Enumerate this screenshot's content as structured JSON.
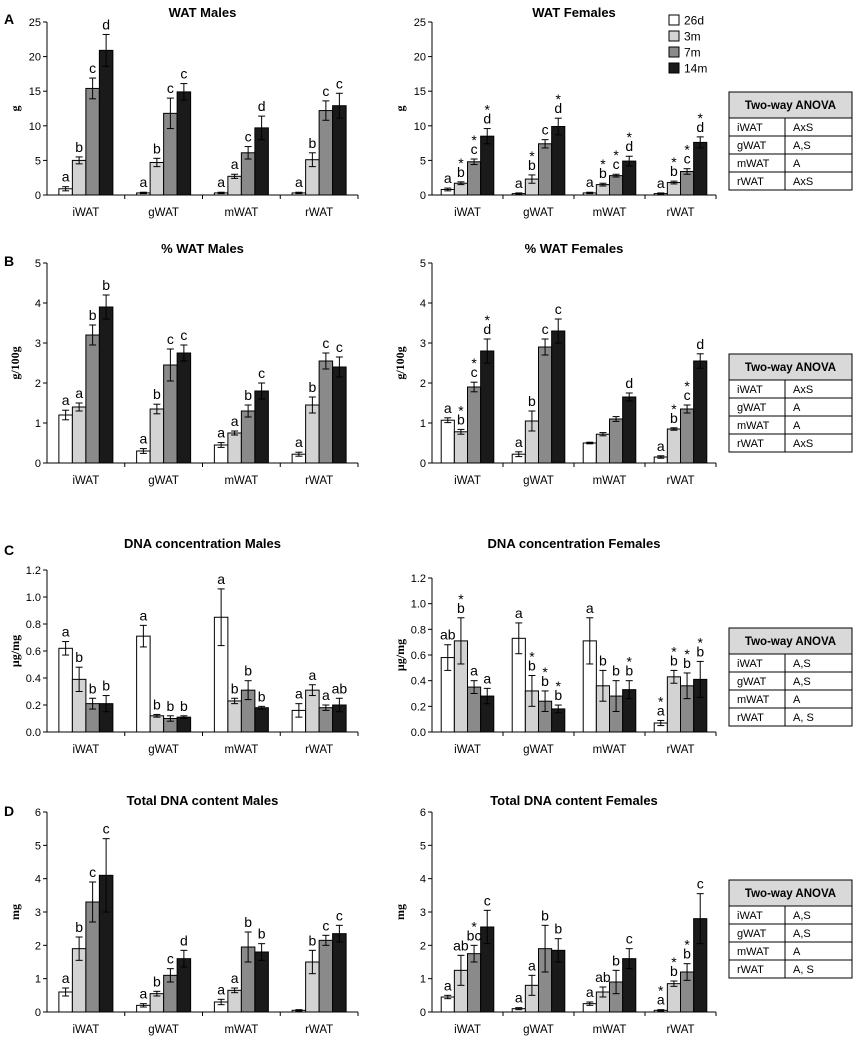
{
  "categories": [
    "iWAT",
    "gWAT",
    "mWAT",
    "rWAT"
  ],
  "legend": [
    {
      "name": "26d",
      "color": "#ffffff"
    },
    {
      "name": "3m",
      "color": "#d3d3d3"
    },
    {
      "name": "7m",
      "color": "#8a8a8a"
    },
    {
      "name": "14m",
      "color": "#1a1a1a"
    }
  ],
  "anova_tables": [
    {
      "header": "Two-way ANOVA",
      "rows": [
        [
          "iWAT",
          "AxS"
        ],
        [
          "gWAT",
          "A,S"
        ],
        [
          "mWAT",
          "A"
        ],
        [
          "rWAT",
          "AxS"
        ]
      ]
    },
    {
      "header": "Two-way ANOVA",
      "rows": [
        [
          "iWAT",
          "AxS"
        ],
        [
          "gWAT",
          "A"
        ],
        [
          "mWAT",
          "A"
        ],
        [
          "rWAT",
          "AxS"
        ]
      ]
    },
    {
      "header": "Two-way ANOVA",
      "rows": [
        [
          "iWAT",
          "A,S"
        ],
        [
          "gWAT",
          "A,S"
        ],
        [
          "mWAT",
          "A"
        ],
        [
          "rWAT",
          "A, S"
        ]
      ]
    },
    {
      "header": "Two-way ANOVA",
      "rows": [
        [
          "iWAT",
          "A,S"
        ],
        [
          "gWAT",
          "A,S"
        ],
        [
          "mWAT",
          "A"
        ],
        [
          "rWAT",
          "A, S"
        ]
      ]
    }
  ],
  "chart_data": [
    {
      "panel": "A",
      "type": "bar",
      "title": "WAT Males",
      "ylabel": "g",
      "ylim": [
        0,
        25
      ],
      "yticks": [
        "0",
        "5",
        "10",
        "15",
        "20",
        "25"
      ],
      "values": [
        [
          0.9,
          5.0,
          15.4,
          20.9
        ],
        [
          0.3,
          4.7,
          11.8,
          14.9
        ],
        [
          0.3,
          2.7,
          6.1,
          9.7
        ],
        [
          0.3,
          5.1,
          12.2,
          12.9
        ]
      ],
      "errors": [
        [
          0.3,
          0.5,
          1.5,
          2.3
        ],
        [
          0.1,
          0.6,
          2.2,
          1.2
        ],
        [
          0.1,
          0.3,
          0.9,
          1.7
        ],
        [
          0.1,
          1.0,
          1.4,
          1.8
        ]
      ],
      "letters": [
        [
          "a",
          "b",
          "c",
          "d"
        ],
        [
          "a",
          "b",
          "c",
          "c"
        ],
        [
          "a",
          "a",
          "c",
          "d"
        ],
        [
          "a",
          "b",
          "c",
          "c"
        ]
      ],
      "stars": [
        [
          false,
          false,
          false,
          false
        ],
        [
          false,
          false,
          false,
          false
        ],
        [
          false,
          false,
          false,
          false
        ],
        [
          false,
          false,
          false,
          false
        ]
      ]
    },
    {
      "panel": "",
      "type": "bar",
      "title": "WAT Females",
      "ylabel": "g",
      "ylim": [
        0,
        25
      ],
      "yticks": [
        "0",
        "5",
        "10",
        "15",
        "20",
        "25"
      ],
      "values": [
        [
          0.8,
          1.7,
          4.8,
          8.5
        ],
        [
          0.2,
          2.3,
          7.4,
          9.9
        ],
        [
          0.3,
          1.5,
          2.8,
          4.9
        ],
        [
          0.2,
          1.8,
          3.4,
          7.6
        ]
      ],
      "errors": [
        [
          0.2,
          0.2,
          0.4,
          1.1
        ],
        [
          0.1,
          0.6,
          0.6,
          1.2
        ],
        [
          0.1,
          0.2,
          0.2,
          0.7
        ],
        [
          0.1,
          0.2,
          0.4,
          0.8
        ]
      ],
      "letters": [
        [
          "a",
          "b",
          "c",
          "d"
        ],
        [
          "a",
          "b",
          "c",
          "d"
        ],
        [
          "a",
          "b",
          "c",
          "d"
        ],
        [
          "a",
          "b",
          "c",
          "d"
        ]
      ],
      "stars": [
        [
          false,
          true,
          true,
          true
        ],
        [
          false,
          true,
          false,
          true
        ],
        [
          false,
          true,
          true,
          true
        ],
        [
          false,
          true,
          true,
          true
        ]
      ]
    },
    {
      "panel": "B",
      "type": "bar",
      "title": "% WAT Males",
      "ylabel": "g/100g",
      "ylim": [
        0,
        5
      ],
      "yticks": [
        "0",
        "1",
        "2",
        "3",
        "4",
        "5"
      ],
      "values": [
        [
          1.2,
          1.4,
          3.2,
          3.9
        ],
        [
          0.3,
          1.35,
          2.45,
          2.75
        ],
        [
          0.45,
          0.75,
          1.3,
          1.8
        ],
        [
          0.22,
          1.45,
          2.55,
          2.4
        ]
      ],
      "errors": [
        [
          0.12,
          0.1,
          0.25,
          0.3
        ],
        [
          0.06,
          0.12,
          0.4,
          0.2
        ],
        [
          0.06,
          0.05,
          0.15,
          0.2
        ],
        [
          0.05,
          0.2,
          0.2,
          0.25
        ]
      ],
      "letters": [
        [
          "a",
          "a",
          "b",
          "b"
        ],
        [
          "a",
          "b",
          "c",
          "c"
        ],
        [
          "a",
          "a",
          "b",
          "c"
        ],
        [
          "a",
          "b",
          "c",
          "c"
        ]
      ],
      "stars": [
        [
          false,
          false,
          false,
          false
        ],
        [
          false,
          false,
          false,
          false
        ],
        [
          false,
          false,
          false,
          false
        ],
        [
          false,
          false,
          false,
          false
        ]
      ]
    },
    {
      "panel": "",
      "type": "bar",
      "title": "% WAT Females",
      "ylabel": "g/100g",
      "ylim": [
        0,
        5
      ],
      "yticks": [
        "0",
        "1",
        "2",
        "3",
        "4",
        "5"
      ],
      "values": [
        [
          1.07,
          0.78,
          1.9,
          2.8
        ],
        [
          0.22,
          1.05,
          2.9,
          3.3
        ],
        [
          0.5,
          0.72,
          1.1,
          1.65
        ],
        [
          0.15,
          0.85,
          1.35,
          2.55
        ]
      ],
      "errors": [
        [
          0.06,
          0.06,
          0.12,
          0.3
        ],
        [
          0.06,
          0.25,
          0.2,
          0.3
        ],
        [
          0.02,
          0.04,
          0.06,
          0.1
        ],
        [
          0.03,
          0.03,
          0.1,
          0.18
        ]
      ],
      "letters": [
        [
          "a",
          "b",
          "c",
          "d"
        ],
        [
          "a",
          "b",
          "c",
          "c"
        ],
        [
          "",
          "",
          "",
          "d"
        ],
        [
          "a",
          "b",
          "c",
          "d"
        ]
      ],
      "stars": [
        [
          false,
          true,
          true,
          true
        ],
        [
          false,
          false,
          false,
          false
        ],
        [
          false,
          false,
          false,
          false
        ],
        [
          false,
          true,
          true,
          false
        ]
      ]
    },
    {
      "panel": "C",
      "type": "bar",
      "title": "DNA concentration Males",
      "ylabel": "μg/mg",
      "ylim": [
        0,
        1.2
      ],
      "yticks": [
        "0.0",
        "0.2",
        "0.4",
        "0.6",
        "0.8",
        "1.0",
        "1.2"
      ],
      "values": [
        [
          0.62,
          0.39,
          0.21,
          0.21
        ],
        [
          0.71,
          0.12,
          0.1,
          0.11
        ],
        [
          0.85,
          0.23,
          0.31,
          0.18
        ],
        [
          0.16,
          0.31,
          0.18,
          0.2
        ]
      ],
      "errors": [
        [
          0.05,
          0.09,
          0.04,
          0.06
        ],
        [
          0.08,
          0.01,
          0.02,
          0.01
        ],
        [
          0.21,
          0.02,
          0.07,
          0.01
        ],
        [
          0.05,
          0.04,
          0.02,
          0.05
        ]
      ],
      "letters": [
        [
          "a",
          "b",
          "b",
          "b"
        ],
        [
          "a",
          "b",
          "b",
          "b"
        ],
        [
          "a",
          "b",
          "b",
          "b"
        ],
        [
          "a",
          "a",
          "a",
          "ab"
        ]
      ],
      "stars": [
        [
          false,
          false,
          false,
          false
        ],
        [
          false,
          false,
          false,
          false
        ],
        [
          false,
          false,
          false,
          false
        ],
        [
          false,
          false,
          false,
          false
        ]
      ]
    },
    {
      "panel": "",
      "type": "bar",
      "title": "DNA concentration Females",
      "ylabel": "μg/mg",
      "ylim": [
        0,
        1.2
      ],
      "yticks": [
        "0.0",
        "0.2",
        "0.4",
        "0.6",
        "0.8",
        "1.0",
        "1.2"
      ],
      "values": [
        [
          0.58,
          0.71,
          0.35,
          0.28
        ],
        [
          0.73,
          0.32,
          0.24,
          0.18
        ],
        [
          0.71,
          0.36,
          0.28,
          0.33
        ],
        [
          0.07,
          0.43,
          0.36,
          0.41
        ]
      ],
      "errors": [
        [
          0.1,
          0.18,
          0.05,
          0.06
        ],
        [
          0.12,
          0.12,
          0.08,
          0.03
        ],
        [
          0.18,
          0.12,
          0.12,
          0.07
        ],
        [
          0.02,
          0.05,
          0.1,
          0.14
        ]
      ],
      "letters": [
        [
          "ab",
          "b",
          "a",
          "a"
        ],
        [
          "a",
          "b",
          "b",
          "b"
        ],
        [
          "a",
          "b",
          "b",
          "b"
        ],
        [
          "a",
          "b",
          "b",
          "b"
        ]
      ],
      "stars": [
        [
          false,
          true,
          false,
          false
        ],
        [
          false,
          true,
          true,
          true
        ],
        [
          false,
          false,
          false,
          true
        ],
        [
          true,
          true,
          true,
          true
        ]
      ]
    },
    {
      "panel": "D",
      "type": "bar",
      "title": "Total DNA content Males",
      "ylabel": "mg",
      "ylim": [
        0,
        6
      ],
      "yticks": [
        "0",
        "1",
        "2",
        "3",
        "4",
        "5",
        "6"
      ],
      "values": [
        [
          0.6,
          1.9,
          3.3,
          4.1
        ],
        [
          0.2,
          0.55,
          1.1,
          1.6
        ],
        [
          0.3,
          0.65,
          1.95,
          1.8
        ],
        [
          0.05,
          1.5,
          2.15,
          2.35
        ]
      ],
      "errors": [
        [
          0.12,
          0.35,
          0.6,
          1.1
        ],
        [
          0.05,
          0.07,
          0.2,
          0.25
        ],
        [
          0.08,
          0.07,
          0.45,
          0.25
        ],
        [
          0.02,
          0.35,
          0.15,
          0.25
        ]
      ],
      "letters": [
        [
          "a",
          "b",
          "c",
          "c"
        ],
        [
          "a",
          "b",
          "c",
          "d"
        ],
        [
          "a",
          "a",
          "b",
          "b"
        ],
        [
          "",
          "b",
          "c",
          "c"
        ]
      ],
      "stars": [
        [
          false,
          false,
          false,
          false
        ],
        [
          false,
          false,
          false,
          false
        ],
        [
          false,
          false,
          false,
          false
        ],
        [
          false,
          false,
          false,
          false
        ]
      ]
    },
    {
      "panel": "",
      "type": "bar",
      "title": "Total DNA content Females",
      "ylabel": "mg",
      "ylim": [
        0,
        6
      ],
      "yticks": [
        "0",
        "1",
        "2",
        "3",
        "4",
        "5",
        "6"
      ],
      "values": [
        [
          0.45,
          1.25,
          1.75,
          2.55
        ],
        [
          0.1,
          0.8,
          1.9,
          1.85
        ],
        [
          0.25,
          0.6,
          0.9,
          1.6
        ],
        [
          0.05,
          0.85,
          1.2,
          2.8
        ]
      ],
      "errors": [
        [
          0.05,
          0.45,
          0.25,
          0.5
        ],
        [
          0.03,
          0.3,
          0.7,
          0.35
        ],
        [
          0.05,
          0.15,
          0.35,
          0.3
        ],
        [
          0.02,
          0.08,
          0.25,
          0.75
        ]
      ],
      "letters": [
        [
          "a",
          "ab",
          "bc",
          "c"
        ],
        [
          "a",
          "a",
          "b",
          "b"
        ],
        [
          "a",
          "ab",
          "b",
          "c"
        ],
        [
          "a",
          "b",
          "b",
          "c"
        ]
      ],
      "stars": [
        [
          false,
          false,
          true,
          false
        ],
        [
          false,
          false,
          false,
          false
        ],
        [
          false,
          false,
          false,
          false
        ],
        [
          true,
          true,
          true,
          false
        ]
      ]
    }
  ]
}
